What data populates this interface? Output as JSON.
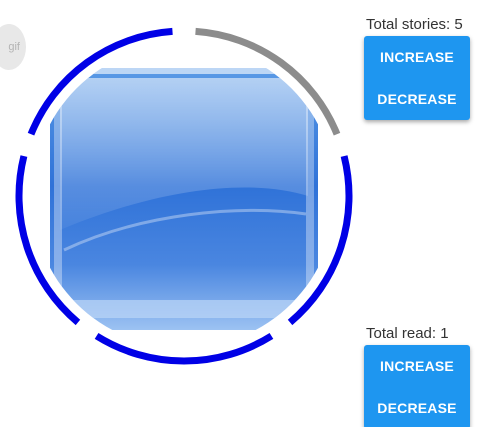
{
  "badge": {
    "label": "gif"
  },
  "ring": {
    "segment_count": 5,
    "read_count": 1,
    "read_color": "#8c8c8c",
    "unread_color": "#0000e6"
  },
  "stories": {
    "label": "Total stories: 5",
    "increase_label": "INCREASE",
    "decrease_label": "DECREASE"
  },
  "read": {
    "label": "Total read: 1",
    "increase_label": "INCREASE",
    "decrease_label": "DECREASE"
  },
  "colors": {
    "button": "#1e96f0",
    "button_text": "#ffffff"
  }
}
